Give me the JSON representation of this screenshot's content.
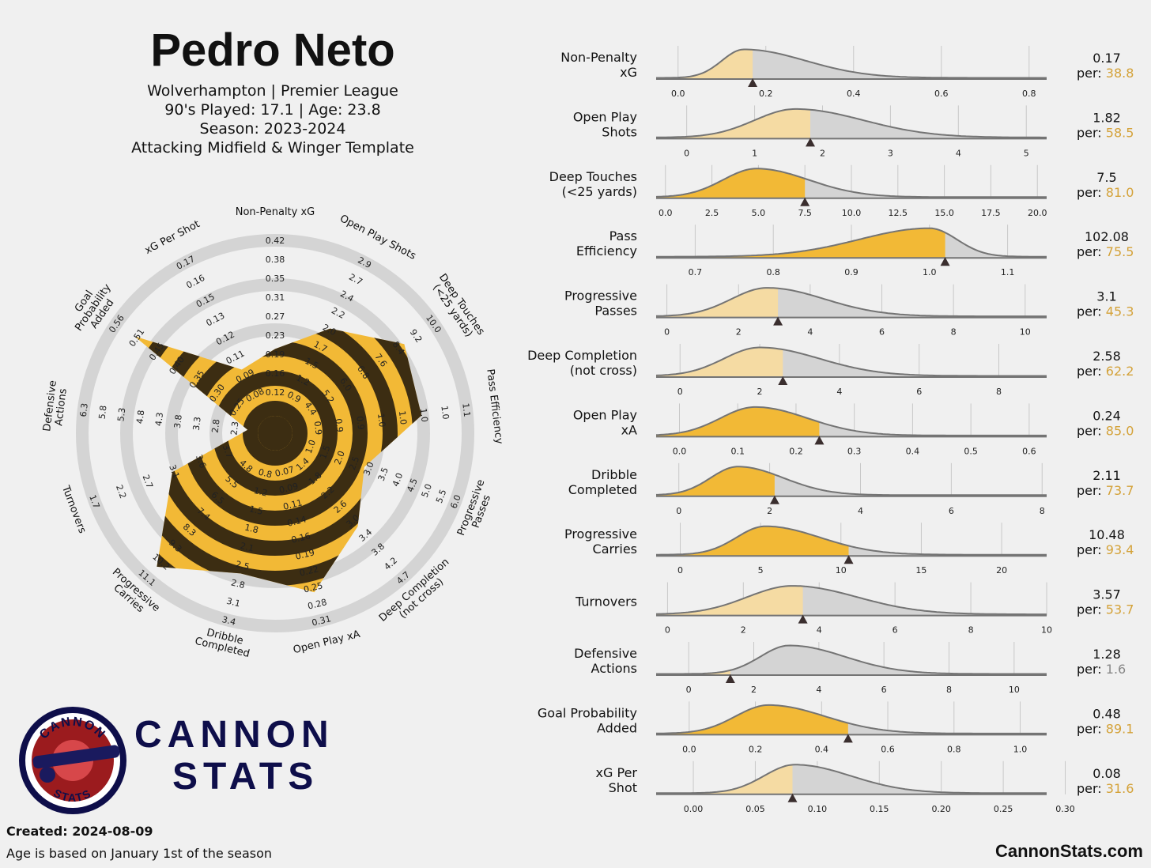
{
  "header": {
    "player": "Pedro Neto",
    "line1": "Wolverhampton | Premier League",
    "line2": "90's Played: 17.1 | Age: 23.8",
    "line3": "Season: 2023-2024",
    "line4": "Attacking Midfield & Winger Template"
  },
  "branding": {
    "logo_top": "CANNON",
    "logo_bottom": "STATS",
    "word1": "CANNON",
    "word2": "STATS",
    "site": "CannonStats.com"
  },
  "footer": {
    "created": "Created: 2024-08-09",
    "note": "Age is based on January 1st of the season"
  },
  "colors": {
    "gold": "#f2b936",
    "gold_light": "#f5dba3",
    "dark": "#3c2d12",
    "gray_fill": "#d4d4d4",
    "curve": "#747474",
    "percentile_text": "#d4a239",
    "navy": "#0e0e4a",
    "background": "#f0f0f0"
  },
  "chart_data": [
    {
      "type": "radar",
      "title": "",
      "metrics": [
        {
          "label": "Non-Penalty xG",
          "ticks": [
            "0.12",
            "0.16",
            "0.19",
            "0.23",
            "0.27",
            "0.31",
            "0.35",
            "0.38",
            "0.42"
          ],
          "percentile": 38.8
        },
        {
          "label": "Open Play Shots",
          "ticks": [
            "0.9",
            "1.2",
            "1.5",
            "1.7",
            "2.0",
            "2.2",
            "2.4",
            "2.7",
            "2.9"
          ],
          "percentile": 58.5
        },
        {
          "label": "Deep Touches\n(<25 yards)",
          "ticks": [
            "4.4",
            "5.2",
            "6.0",
            "6.8",
            "7.6",
            "8.4",
            "9.2",
            "10.0"
          ],
          "percentile": 81.0
        },
        {
          "label": "Pass Efficiency",
          "ticks": [
            "0.9",
            "0.9",
            "0.9",
            "1.0",
            "1.0",
            "1.0",
            "1.0",
            "1.1"
          ],
          "percentile": 75.5
        },
        {
          "label": "Progressive\nPasses",
          "ticks": [
            "1.0",
            "1.5",
            "2.0",
            "2.5",
            "3.0",
            "3.5",
            "4.0",
            "4.5",
            "5.0",
            "5.5",
            "6.0"
          ],
          "percentile": 45.3
        },
        {
          "label": "Deep Completion\n(not cross)",
          "ticks": [
            "1.4",
            "1.8",
            "2.2",
            "2.6",
            "3.0",
            "3.4",
            "3.8",
            "4.2",
            "4.7"
          ],
          "percentile": 62.2
        },
        {
          "label": "Open Play xA",
          "ticks": [
            "0.07",
            "0.09",
            "0.11",
            "0.14",
            "0.16",
            "0.19",
            "0.22",
            "0.25",
            "0.28",
            "0.31"
          ],
          "percentile": 85.0
        },
        {
          "label": "Dribble\nCompleted",
          "ticks": [
            "0.8",
            "1.2",
            "1.5",
            "1.8",
            "2.1",
            "2.5",
            "2.8",
            "3.1",
            "3.4"
          ],
          "percentile": 73.7
        },
        {
          "label": "Progressive\nCarries",
          "ticks": [
            "4.8",
            "5.5",
            "6.5",
            "7.4",
            "8.3",
            "9.3",
            "10.2",
            "11.1"
          ],
          "percentile": 93.4
        },
        {
          "label": "Turnovers",
          "ticks": [
            "3.7",
            "3.6",
            "3.1",
            "2.7",
            "2.2",
            "1.7"
          ],
          "percentile": 53.7
        },
        {
          "label": "Defensive\nActions",
          "ticks": [
            "2.3",
            "2.8",
            "3.3",
            "3.8",
            "4.3",
            "4.8",
            "5.3",
            "5.8",
            "6.3"
          ],
          "percentile": 1.6
        },
        {
          "label": "Goal\nProbability\nAdded",
          "ticks": [
            "0.25",
            "0.30",
            "0.35",
            "0.40",
            "0.45",
            "0.51",
            "0.56"
          ],
          "percentile": 89.1
        },
        {
          "label": "xG Per Shot",
          "ticks": [
            "0.08",
            "0.09",
            "0.11",
            "0.12",
            "0.13",
            "0.15",
            "0.16",
            "0.17"
          ],
          "percentile": 31.6
        }
      ]
    },
    {
      "type": "area",
      "title": "",
      "rows": [
        {
          "label": [
            "Non-Penalty",
            "xG"
          ],
          "value": "0.17",
          "per": "38.8",
          "val": 0.17,
          "domain": [
            -0.05,
            0.84
          ],
          "ticks": [
            0.0,
            0.2,
            0.4,
            0.6,
            0.8
          ],
          "tick_labels": [
            "0.0",
            "0.2",
            "0.4",
            "0.6",
            "0.8"
          ],
          "peak": 0.15,
          "sdl": 0.05,
          "sdr": 0.14,
          "percentile": 38.8
        },
        {
          "label": [
            "Open Play",
            "Shots"
          ],
          "value": "1.82",
          "per": "58.5",
          "val": 1.82,
          "domain": [
            -0.45,
            5.3
          ],
          "ticks": [
            0,
            1,
            2,
            3,
            4,
            5
          ],
          "tick_labels": [
            "0",
            "1",
            "2",
            "3",
            "4",
            "5"
          ],
          "peak": 1.6,
          "sdl": 0.6,
          "sdr": 1.0,
          "percentile": 58.5
        },
        {
          "label": [
            "Deep Touches",
            "(<25 yards)"
          ],
          "value": "7.5",
          "per": "81.0",
          "val": 7.5,
          "domain": [
            -0.5,
            20.5
          ],
          "ticks": [
            0,
            2.5,
            5,
            7.5,
            10,
            12.5,
            15,
            17.5,
            20
          ],
          "tick_labels": [
            "0.0",
            "2.5",
            "5.0",
            "7.5",
            "10.0",
            "12.5",
            "15.0",
            "17.5",
            "20.0"
          ],
          "peak": 4.9,
          "sdl": 1.8,
          "sdr": 2.8,
          "percentile": 81.0
        },
        {
          "label": [
            "Pass",
            "Efficiency"
          ],
          "value": "102.08",
          "per": "75.5",
          "val": 1.02,
          "domain": [
            0.65,
            1.15
          ],
          "ticks": [
            0.7,
            0.8,
            0.9,
            1.0,
            1.1
          ],
          "tick_labels": [
            "0.7",
            "0.8",
            "0.9",
            "1.0",
            "1.1"
          ],
          "peak": 1.0,
          "sdl": 0.09,
          "sdr": 0.035,
          "percentile": 75.5
        },
        {
          "label": [
            "Progressive",
            "Passes"
          ],
          "value": "3.1",
          "per": "45.3",
          "val": 3.1,
          "domain": [
            -0.3,
            10.6
          ],
          "ticks": [
            0,
            2,
            4,
            6,
            8,
            10
          ],
          "tick_labels": [
            "0",
            "2",
            "4",
            "6",
            "8",
            "10"
          ],
          "peak": 2.8,
          "sdl": 1.0,
          "sdr": 1.6,
          "percentile": 45.3
        },
        {
          "label": [
            "Deep Completion",
            "(not cross)"
          ],
          "value": "2.58",
          "per": "62.2",
          "val": 2.58,
          "domain": [
            -0.6,
            9.2
          ],
          "ticks": [
            0,
            2,
            4,
            6,
            8
          ],
          "tick_labels": [
            "0",
            "2",
            "4",
            "6",
            "8"
          ],
          "peak": 2.0,
          "sdl": 0.9,
          "sdr": 1.5,
          "percentile": 62.2
        },
        {
          "label": [
            "Open Play",
            "xA"
          ],
          "value": "0.24",
          "per": "85.0",
          "val": 0.24,
          "domain": [
            -0.04,
            0.63
          ],
          "ticks": [
            0.0,
            0.1,
            0.2,
            0.3,
            0.4,
            0.5,
            0.6
          ],
          "tick_labels": [
            "0.0",
            "0.1",
            "0.2",
            "0.3",
            "0.4",
            "0.5",
            "0.6"
          ],
          "peak": 0.13,
          "sdl": 0.06,
          "sdr": 0.09,
          "percentile": 85.0
        },
        {
          "label": [
            "Dribble",
            "Completed"
          ],
          "value": "2.11",
          "per": "73.7",
          "val": 2.11,
          "domain": [
            -0.5,
            8.1
          ],
          "ticks": [
            0,
            2,
            4,
            6,
            8
          ],
          "tick_labels": [
            "0",
            "2",
            "4",
            "6",
            "8"
          ],
          "peak": 1.3,
          "sdl": 0.6,
          "sdr": 1.0,
          "percentile": 73.7
        },
        {
          "label": [
            "Progressive",
            "Carries"
          ],
          "value": "10.48",
          "per": "93.4",
          "val": 10.48,
          "domain": [
            -1.5,
            22.8
          ],
          "ticks": [
            0,
            5,
            10,
            15,
            20
          ],
          "tick_labels": [
            "0",
            "5",
            "10",
            "15",
            "20"
          ],
          "peak": 5.3,
          "sdl": 1.8,
          "sdr": 3.4,
          "percentile": 93.4
        },
        {
          "label": [
            "Turnovers"
          ],
          "value": "3.57",
          "per": "53.7",
          "val": 3.57,
          "domain": [
            -0.3,
            10.0
          ],
          "ticks": [
            0,
            2,
            4,
            6,
            8,
            10
          ],
          "tick_labels": [
            "0",
            "2",
            "4",
            "6",
            "8",
            "10"
          ],
          "peak": 3.3,
          "sdl": 1.2,
          "sdr": 1.7,
          "percentile": 53.7
        },
        {
          "label": [
            "Defensive",
            "Actions"
          ],
          "value": "1.28",
          "per": "1.6",
          "val": 1.28,
          "domain": [
            -1.0,
            11.0
          ],
          "ticks": [
            0,
            2,
            4,
            6,
            8,
            10
          ],
          "tick_labels": [
            "0",
            "2",
            "4",
            "6",
            "8",
            "10"
          ],
          "peak": 3.1,
          "sdl": 0.9,
          "sdr": 1.7,
          "percentile": 1.6
        },
        {
          "label": [
            "Goal Probability",
            "Added"
          ],
          "value": "0.48",
          "per": "89.1",
          "val": 0.48,
          "domain": [
            -0.1,
            1.08
          ],
          "ticks": [
            0.0,
            0.2,
            0.4,
            0.6,
            0.8,
            1.0
          ],
          "tick_labels": [
            "0.0",
            "0.2",
            "0.4",
            "0.6",
            "0.8",
            "1.0"
          ],
          "peak": 0.24,
          "sdl": 0.1,
          "sdr": 0.17,
          "percentile": 89.1
        },
        {
          "label": [
            "xG Per",
            "Shot"
          ],
          "value": "0.08",
          "per": "31.6",
          "val": 0.08,
          "domain": [
            -0.03,
            0.285
          ],
          "ticks": [
            0.0,
            0.05,
            0.1,
            0.15,
            0.2,
            0.25,
            0.3
          ],
          "tick_labels": [
            "0.00",
            "0.05",
            "0.10",
            "0.15",
            "0.20",
            "0.25",
            "0.30"
          ],
          "peak": 0.082,
          "sdl": 0.025,
          "sdr": 0.045,
          "percentile": 31.6
        }
      ]
    }
  ]
}
